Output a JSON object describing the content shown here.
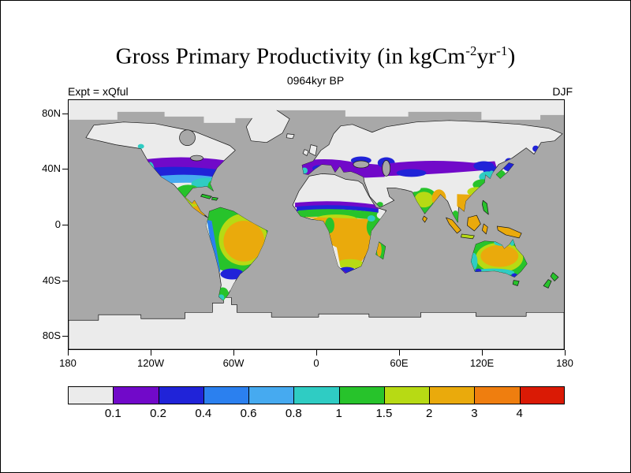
{
  "header": {
    "title": {
      "prefix": "Gross Primary Productivity (in kgCm",
      "sup1": "-2",
      "mid": "yr",
      "sup2": "-1",
      "suffix": ")"
    },
    "subtitle": "0964kyr BP",
    "experiment": "Expt = xQful",
    "season": "DJF"
  },
  "axes": {
    "lat_ticks": [
      {
        "label": "80N",
        "lat": 80
      },
      {
        "label": "40N",
        "lat": 40
      },
      {
        "label": "0",
        "lat": 0
      },
      {
        "label": "40S",
        "lat": -40
      },
      {
        "label": "80S",
        "lat": -80
      }
    ],
    "lon_ticks": [
      {
        "label": "180",
        "lon": -180
      },
      {
        "label": "120W",
        "lon": -120
      },
      {
        "label": "60W",
        "lon": -60
      },
      {
        "label": "0",
        "lon": 0
      },
      {
        "label": "60E",
        "lon": 60
      },
      {
        "label": "120E",
        "lon": 120
      },
      {
        "label": "180",
        "lon": 180
      }
    ]
  },
  "map": {
    "colors": {
      "ocean": "#a8a8a8",
      "land_nodata": "#ebebeb",
      "ice": "#ebebeb",
      "coast": "#161616"
    }
  },
  "chart_data": {
    "type": "heatmap",
    "subtype": "filled-contour world map, equirectangular projection",
    "title": "Gross Primary Productivity (in kgCm-2yr-1)",
    "subtitle": "0964kyr BP",
    "experiment": "xQful",
    "season": "DJF",
    "units": "kgC m-2 yr-1",
    "lon_range": [
      -180,
      180
    ],
    "lat_range": [
      -90,
      90
    ],
    "contour_levels": [
      0.1,
      0.2,
      0.4,
      0.6,
      0.8,
      1,
      1.5,
      2,
      3,
      4
    ],
    "colorbar_labels": [
      "0.1",
      "0.2",
      "0.4",
      "0.6",
      "0.8",
      "1",
      "1.5",
      "2",
      "3",
      "4"
    ],
    "legend_position": "bottom",
    "palette": [
      {
        "range": "< 0.1",
        "color": "#ebebeb"
      },
      {
        "range": "0.1 - 0.2",
        "color": "#7109c9"
      },
      {
        "range": "0.2 - 0.4",
        "color": "#2023d8"
      },
      {
        "range": "0.4 - 0.6",
        "color": "#2b80ef"
      },
      {
        "range": "0.6 - 0.8",
        "color": "#46aaf0"
      },
      {
        "range": "0.8 - 1",
        "color": "#2fccc3"
      },
      {
        "range": "1 - 1.5",
        "color": "#27c32b"
      },
      {
        "range": "1.5 - 2",
        "color": "#b7da14"
      },
      {
        "range": "2 - 3",
        "color": "#eaaa0c"
      },
      {
        "range": "3 - 4",
        "color": "#ef7e0f"
      },
      {
        "range": "> 4",
        "color": "#da1a05"
      }
    ],
    "regional_values_approx": {
      "sahara_arabia_tibet_high_latitudes": "< 0.1",
      "us_mid_latitude_band": "0.1 - 0.8",
      "mexico_central_america": "1 - 3",
      "amazon_and_brazil": "2 - 3",
      "andes_coast_patagonia": "0.1 - 1",
      "congo_and_southern_africa": "2 - 3",
      "sahel_margin": "0.1 - 0.4",
      "east_africa_highlands": "0.8 - 2",
      "southern_europe_band": "0.1 - 0.4",
      "central_asia_band": "0.1 - 0.4",
      "india": "1 - 2",
      "bengal_southeast_asia": "2 - 3",
      "east_china_gradient": "0.2 - 2",
      "maritime_continent": "2 - 3",
      "australia_interior": "2 - 3",
      "australia_coastal_fringe": "0.2 - 1.5"
    }
  }
}
